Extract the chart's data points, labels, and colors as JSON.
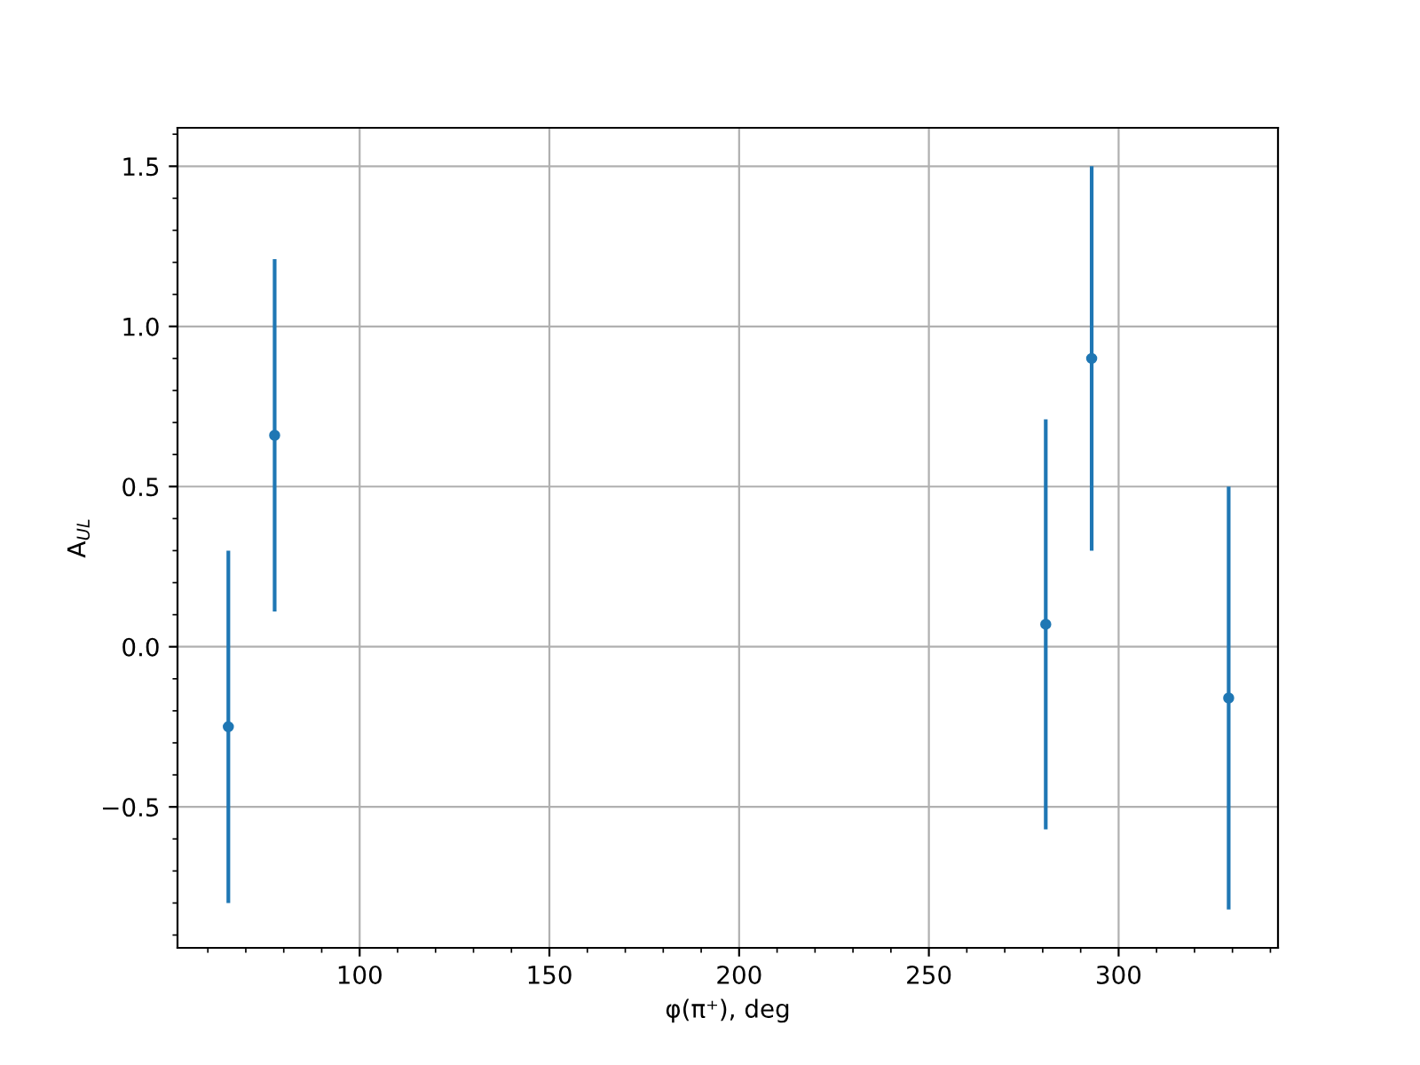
{
  "chart_data": {
    "type": "scatter",
    "xlabel": "φ(π⁺), deg",
    "ylabel": "A$_{UL}$",
    "x": [
      65.4,
      77.6,
      280.8,
      292.9,
      329.0
    ],
    "series": [
      {
        "color": "#1f77b4",
        "values": [
          -0.25,
          0.66,
          0.07,
          0.9,
          -0.16
        ],
        "errors": [
          0.55,
          0.55,
          0.64,
          0.6,
          0.66
        ]
      }
    ],
    "xlim": [
      52,
      342
    ],
    "xticks": [
      100,
      150,
      200,
      250,
      300
    ],
    "ylim": [
      -0.94,
      1.62
    ],
    "yticks": [
      {
        "value": -0.5,
        "label": "−0.5"
      },
      {
        "value": 0,
        "label": "0.0"
      },
      0.5,
      {
        "value": 1,
        "label": "1.0"
      },
      1.5
    ],
    "grid": true,
    "marker": "circle"
  }
}
